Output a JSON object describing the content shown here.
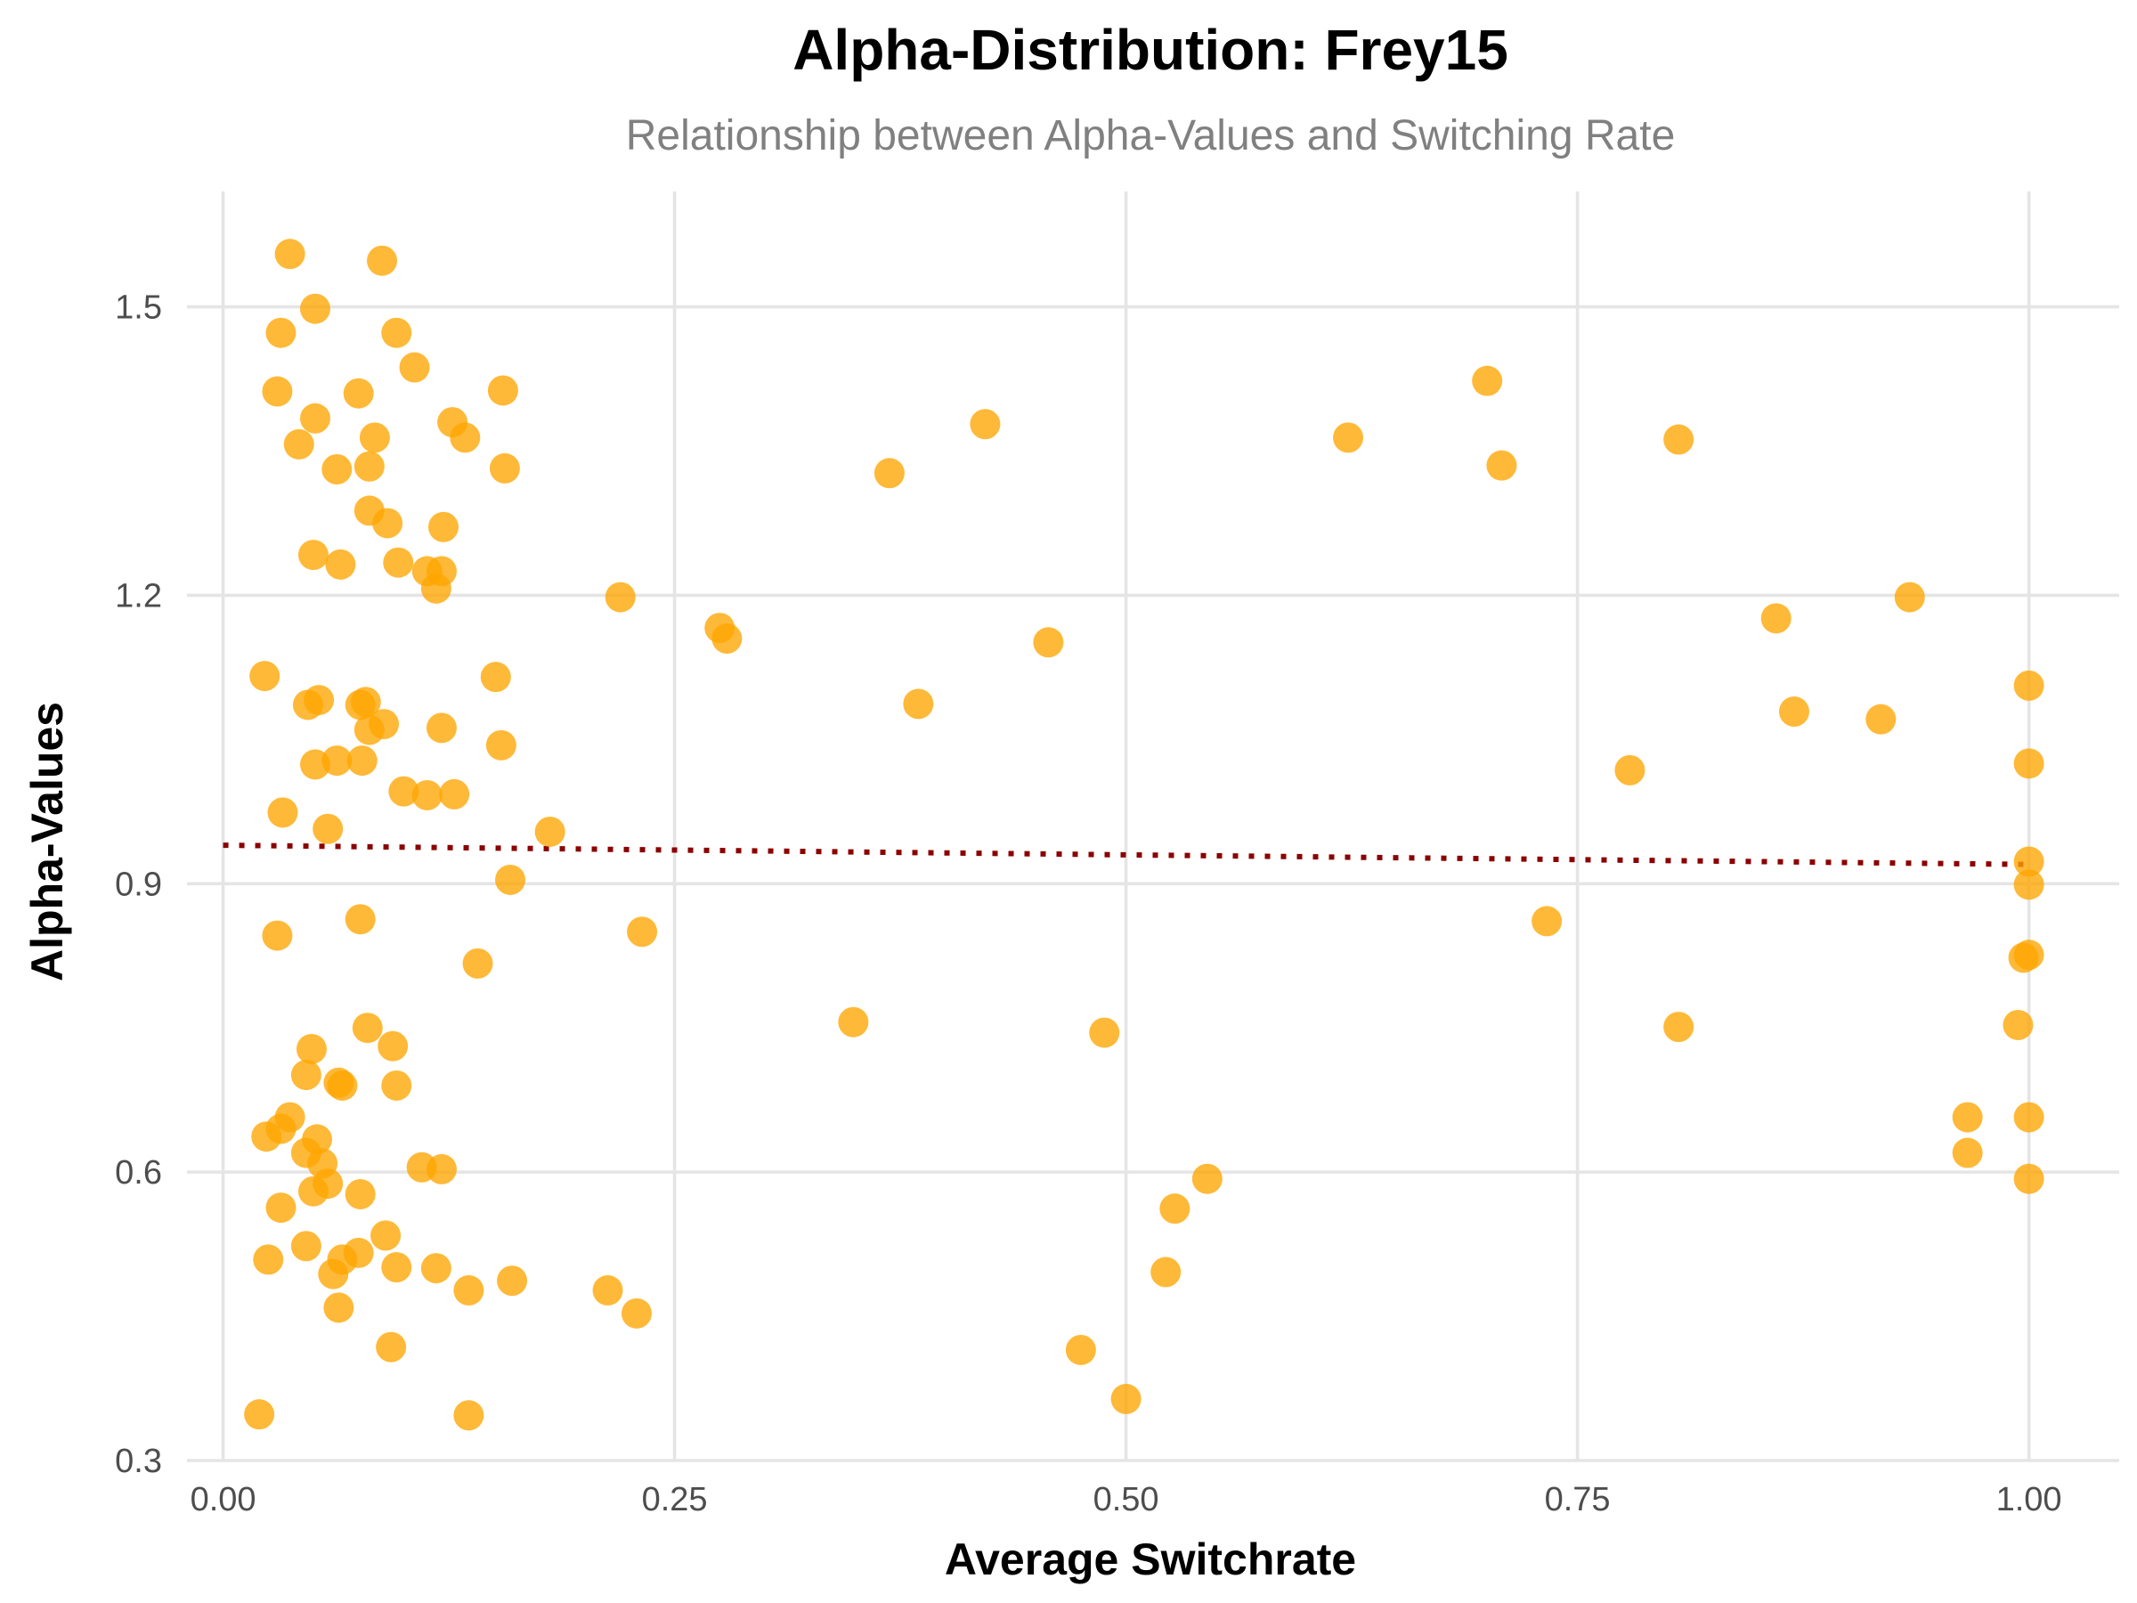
{
  "chart_data": {
    "type": "scatter",
    "title": "Alpha-Distribution: Frey15",
    "subtitle": "Relationship between Alpha-Values and Switching Rate",
    "xlabel": "Average Switchrate",
    "ylabel": "Alpha-Values",
    "xlim": [
      -0.02,
      1.05
    ],
    "ylim": [
      0.3,
      1.62
    ],
    "x_ticks": [
      "0.00",
      "0.25",
      "0.50",
      "0.75",
      "1.00"
    ],
    "y_ticks": [
      "0.3",
      "0.6",
      "0.9",
      "1.2",
      "1.5"
    ],
    "grid": true,
    "point_color": "#ffa500",
    "trend_color": "#8b0000",
    "trend_line": {
      "x": [
        0.0,
        1.0
      ],
      "y": [
        0.94,
        0.92
      ]
    },
    "points": [
      {
        "x": 0.037,
        "y": 1.555
      },
      {
        "x": 0.088,
        "y": 1.548
      },
      {
        "x": 0.051,
        "y": 1.498
      },
      {
        "x": 0.032,
        "y": 1.473
      },
      {
        "x": 0.096,
        "y": 1.473
      },
      {
        "x": 0.106,
        "y": 1.437
      },
      {
        "x": 0.03,
        "y": 1.412
      },
      {
        "x": 0.075,
        "y": 1.41
      },
      {
        "x": 0.155,
        "y": 1.413
      },
      {
        "x": 0.051,
        "y": 1.384
      },
      {
        "x": 0.127,
        "y": 1.38
      },
      {
        "x": 0.084,
        "y": 1.364
      },
      {
        "x": 0.042,
        "y": 1.357
      },
      {
        "x": 0.134,
        "y": 1.364
      },
      {
        "x": 0.063,
        "y": 1.331
      },
      {
        "x": 0.081,
        "y": 1.334
      },
      {
        "x": 0.156,
        "y": 1.332
      },
      {
        "x": 0.081,
        "y": 1.288
      },
      {
        "x": 0.091,
        "y": 1.275
      },
      {
        "x": 0.122,
        "y": 1.271
      },
      {
        "x": 0.05,
        "y": 1.242
      },
      {
        "x": 0.065,
        "y": 1.232
      },
      {
        "x": 0.097,
        "y": 1.234
      },
      {
        "x": 0.113,
        "y": 1.225
      },
      {
        "x": 0.121,
        "y": 1.225
      },
      {
        "x": 0.118,
        "y": 1.207
      },
      {
        "x": 0.023,
        "y": 1.116
      },
      {
        "x": 0.151,
        "y": 1.115
      },
      {
        "x": 0.047,
        "y": 1.086
      },
      {
        "x": 0.053,
        "y": 1.091
      },
      {
        "x": 0.076,
        "y": 1.086
      },
      {
        "x": 0.079,
        "y": 1.089
      },
      {
        "x": 0.081,
        "y": 1.06
      },
      {
        "x": 0.089,
        "y": 1.066
      },
      {
        "x": 0.121,
        "y": 1.062
      },
      {
        "x": 0.154,
        "y": 1.044
      },
      {
        "x": 0.051,
        "y": 1.024
      },
      {
        "x": 0.063,
        "y": 1.028
      },
      {
        "x": 0.077,
        "y": 1.028
      },
      {
        "x": 0.1,
        "y": 0.996
      },
      {
        "x": 0.113,
        "y": 0.992
      },
      {
        "x": 0.128,
        "y": 0.993
      },
      {
        "x": 0.033,
        "y": 0.974
      },
      {
        "x": 0.058,
        "y": 0.957
      },
      {
        "x": 0.181,
        "y": 0.954
      },
      {
        "x": 0.159,
        "y": 0.904
      },
      {
        "x": 0.076,
        "y": 0.863
      },
      {
        "x": 0.03,
        "y": 0.846
      },
      {
        "x": 0.141,
        "y": 0.817
      },
      {
        "x": 0.08,
        "y": 0.75
      },
      {
        "x": 0.049,
        "y": 0.728
      },
      {
        "x": 0.094,
        "y": 0.731
      },
      {
        "x": 0.046,
        "y": 0.701
      },
      {
        "x": 0.064,
        "y": 0.693
      },
      {
        "x": 0.066,
        "y": 0.69
      },
      {
        "x": 0.096,
        "y": 0.69
      },
      {
        "x": 0.037,
        "y": 0.657
      },
      {
        "x": 0.024,
        "y": 0.637
      },
      {
        "x": 0.032,
        "y": 0.645
      },
      {
        "x": 0.052,
        "y": 0.634
      },
      {
        "x": 0.046,
        "y": 0.62
      },
      {
        "x": 0.055,
        "y": 0.609
      },
      {
        "x": 0.11,
        "y": 0.605
      },
      {
        "x": 0.121,
        "y": 0.603
      },
      {
        "x": 0.058,
        "y": 0.588
      },
      {
        "x": 0.05,
        "y": 0.58
      },
      {
        "x": 0.076,
        "y": 0.577
      },
      {
        "x": 0.032,
        "y": 0.563
      },
      {
        "x": 0.09,
        "y": 0.534
      },
      {
        "x": 0.046,
        "y": 0.523
      },
      {
        "x": 0.075,
        "y": 0.516
      },
      {
        "x": 0.025,
        "y": 0.509
      },
      {
        "x": 0.066,
        "y": 0.509
      },
      {
        "x": 0.061,
        "y": 0.494
      },
      {
        "x": 0.096,
        "y": 0.501
      },
      {
        "x": 0.118,
        "y": 0.5
      },
      {
        "x": 0.16,
        "y": 0.487
      },
      {
        "x": 0.136,
        "y": 0.477
      },
      {
        "x": 0.064,
        "y": 0.459
      },
      {
        "x": 0.093,
        "y": 0.418
      },
      {
        "x": 0.02,
        "y": 0.348
      },
      {
        "x": 0.136,
        "y": 0.347
      },
      {
        "x": 0.22,
        "y": 1.198
      },
      {
        "x": 0.213,
        "y": 0.477
      },
      {
        "x": 0.232,
        "y": 0.85
      },
      {
        "x": 0.229,
        "y": 0.453
      },
      {
        "x": 0.275,
        "y": 1.166
      },
      {
        "x": 0.279,
        "y": 1.155
      },
      {
        "x": 0.349,
        "y": 0.756
      },
      {
        "x": 0.369,
        "y": 1.327
      },
      {
        "x": 0.385,
        "y": 1.087
      },
      {
        "x": 0.422,
        "y": 1.378
      },
      {
        "x": 0.457,
        "y": 1.151
      },
      {
        "x": 0.475,
        "y": 0.415
      },
      {
        "x": 0.488,
        "y": 0.745
      },
      {
        "x": 0.5,
        "y": 0.364
      },
      {
        "x": 0.522,
        "y": 0.496
      },
      {
        "x": 0.527,
        "y": 0.562
      },
      {
        "x": 0.545,
        "y": 0.593
      },
      {
        "x": 0.623,
        "y": 1.364
      },
      {
        "x": 0.7,
        "y": 1.423
      },
      {
        "x": 0.708,
        "y": 1.335
      },
      {
        "x": 0.733,
        "y": 0.861
      },
      {
        "x": 0.779,
        "y": 1.018
      },
      {
        "x": 0.806,
        "y": 1.362
      },
      {
        "x": 0.806,
        "y": 0.751
      },
      {
        "x": 0.86,
        "y": 1.176
      },
      {
        "x": 0.87,
        "y": 1.079
      },
      {
        "x": 0.918,
        "y": 1.071
      },
      {
        "x": 0.934,
        "y": 1.198
      },
      {
        "x": 0.966,
        "y": 0.657
      },
      {
        "x": 0.966,
        "y": 0.62
      },
      {
        "x": 0.994,
        "y": 0.753
      },
      {
        "x": 0.997,
        "y": 0.823
      },
      {
        "x": 1.0,
        "y": 0.826
      },
      {
        "x": 1.0,
        "y": 1.106
      },
      {
        "x": 1.0,
        "y": 1.025
      },
      {
        "x": 1.0,
        "y": 0.923
      },
      {
        "x": 1.0,
        "y": 0.899
      },
      {
        "x": 1.0,
        "y": 0.657
      },
      {
        "x": 1.0,
        "y": 0.593
      }
    ]
  }
}
